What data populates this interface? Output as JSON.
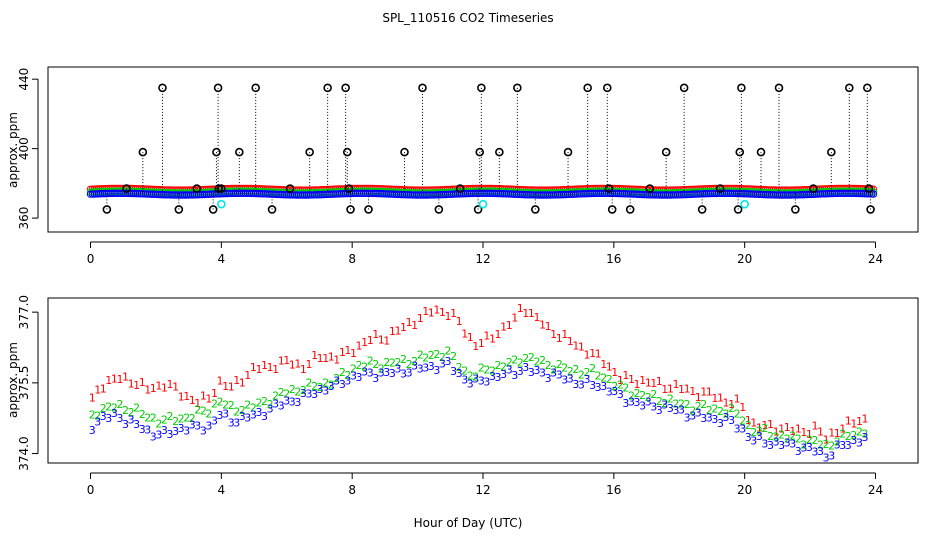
{
  "title": "SPL_110516  CO2 Timeseries",
  "xlabel": "Hour of Day (UTC)",
  "colors": {
    "black": "#000000",
    "red": "#ff0000",
    "green": "#00cc00",
    "blue": "#0000ff",
    "cyan": "#00e5e5"
  },
  "chart_data": [
    {
      "type": "scatter",
      "panel": "top",
      "ylabel": "approx. ppm",
      "xlim": [
        -1.3,
        25.3
      ],
      "ylim": [
        352,
        447
      ],
      "xticks": [
        "0",
        "4",
        "8",
        "12",
        "16",
        "20",
        "24"
      ],
      "yticks": [
        "360",
        "400",
        "440"
      ],
      "baseline_ppm": 375,
      "series": [
        {
          "name": "1",
          "color": "#ff0000",
          "marker": "1",
          "description": "red dense line near 375-376 ppm"
        },
        {
          "name": "2",
          "color": "#00cc00",
          "marker": "2",
          "description": "green dense line near 375 ppm"
        },
        {
          "name": "3",
          "color": "#0000ff",
          "marker": "3",
          "description": "blue dense line near 374 ppm"
        },
        {
          "name": "outliers",
          "color": "#000000",
          "marker": "o",
          "x": [
            0.5,
            1.1,
            1.6,
            2.2,
            2.7,
            3.25,
            3.75,
            3.85,
            3.9,
            3.92,
            4.0,
            4.55,
            5.05,
            5.55,
            6.1,
            6.7,
            7.25,
            7.8,
            7.85,
            7.9,
            7.95,
            8.5,
            9.6,
            10.15,
            10.65,
            11.3,
            11.85,
            11.9,
            11.95,
            12.5,
            13.05,
            13.6,
            14.6,
            15.2,
            15.8,
            15.85,
            15.95,
            16.5,
            17.1,
            17.6,
            18.15,
            18.7,
            19.25,
            19.8,
            19.85,
            19.9,
            20.5,
            21.05,
            21.55,
            22.1,
            22.65,
            23.2,
            23.75,
            23.8,
            23.85
          ],
          "y": [
            365,
            377,
            398,
            435,
            365,
            377,
            365,
            398,
            435,
            377,
            377,
            398,
            435,
            365,
            377,
            398,
            435,
            435,
            398,
            377,
            365,
            365,
            398,
            435,
            365,
            377,
            365,
            398,
            435,
            398,
            435,
            365,
            398,
            435,
            435,
            377,
            365,
            365,
            377,
            398,
            435,
            365,
            377,
            365,
            398,
            435,
            398,
            435,
            365,
            377,
            398,
            435,
            435,
            377,
            365
          ]
        },
        {
          "name": "low outliers",
          "color": "#00e5e5",
          "marker": "o",
          "x": [
            4.0,
            12.0,
            20.0
          ],
          "y": [
            368,
            368,
            368
          ]
        }
      ]
    },
    {
      "type": "scatter",
      "panel": "bottom",
      "ylabel": "approx. ppm",
      "xlim": [
        -1.3,
        25.3
      ],
      "ylim": [
        373.8,
        377.3
      ],
      "xticks": [
        "0",
        "4",
        "8",
        "12",
        "16",
        "20",
        "24"
      ],
      "yticks": [
        "374.0",
        "375.5",
        "377.0"
      ],
      "x_knots": [
        0,
        0.3,
        0.8,
        1.3,
        1.8,
        2.3,
        2.8,
        3.3,
        3.7,
        3.9,
        4.3,
        5.0,
        5.5,
        6.0,
        6.5,
        7.0,
        7.5,
        7.9,
        8.1,
        8.6,
        9.0,
        9.5,
        10.0,
        10.5,
        10.9,
        11.2,
        11.5,
        11.8,
        12.1,
        12.5,
        13.0,
        13.2,
        13.5,
        14.0,
        14.5,
        15.0,
        15.5,
        15.8,
        16.2,
        16.8,
        17.5,
        18.0,
        18.5,
        19.0,
        19.5,
        19.9,
        20.2,
        20.7,
        21.2,
        21.7,
        22.2,
        22.5,
        22.8,
        23.3,
        23.7
      ],
      "series": [
        {
          "name": "1",
          "color": "#ff0000",
          "marker": "1",
          "y_knots": [
            375.05,
            375.45,
            375.6,
            375.55,
            375.35,
            375.5,
            375.25,
            375.1,
            375.2,
            375.55,
            375.4,
            375.8,
            375.85,
            375.95,
            375.85,
            376.05,
            376.05,
            376.15,
            376.25,
            376.45,
            376.45,
            376.65,
            376.85,
            377.05,
            377.0,
            376.85,
            376.55,
            376.3,
            376.4,
            376.6,
            376.85,
            377.15,
            376.95,
            376.65,
            376.45,
            376.25,
            376.05,
            375.9,
            375.6,
            375.55,
            375.45,
            375.4,
            375.3,
            375.25,
            375.1,
            375.05,
            374.65,
            374.55,
            374.55,
            374.45,
            374.55,
            374.3,
            374.5,
            374.65,
            374.75
          ]
        },
        {
          "name": "2",
          "color": "#00cc00",
          "marker": "2",
          "y_knots": [
            374.75,
            374.95,
            375.0,
            374.95,
            374.75,
            374.7,
            374.75,
            374.85,
            374.95,
            375.15,
            374.95,
            375.0,
            375.15,
            375.3,
            375.4,
            375.45,
            375.55,
            375.75,
            375.85,
            375.9,
            375.9,
            375.95,
            376.0,
            376.1,
            376.15,
            375.95,
            375.7,
            375.65,
            375.8,
            375.85,
            375.95,
            376.05,
            376.0,
            375.9,
            375.8,
            375.75,
            375.7,
            375.6,
            375.4,
            375.25,
            375.15,
            375.05,
            375.0,
            374.95,
            374.9,
            374.8,
            374.5,
            374.45,
            374.35,
            374.3,
            374.25,
            374.15,
            374.3,
            374.4,
            374.5
          ]
        },
        {
          "name": "3",
          "color": "#0000ff",
          "marker": "3",
          "y_knots": [
            374.55,
            374.75,
            374.8,
            374.65,
            374.45,
            374.4,
            374.55,
            374.55,
            374.6,
            374.85,
            374.7,
            374.8,
            374.95,
            375.1,
            375.2,
            375.35,
            375.45,
            375.6,
            375.65,
            375.7,
            375.7,
            375.75,
            375.8,
            375.85,
            375.9,
            375.75,
            375.55,
            375.5,
            375.6,
            375.65,
            375.75,
            375.8,
            375.75,
            375.7,
            375.6,
            375.5,
            375.45,
            375.4,
            375.2,
            375.05,
            375.0,
            374.9,
            374.8,
            374.75,
            374.7,
            374.55,
            374.3,
            374.25,
            374.2,
            374.15,
            374.05,
            373.95,
            374.1,
            374.25,
            374.35
          ]
        }
      ]
    }
  ]
}
